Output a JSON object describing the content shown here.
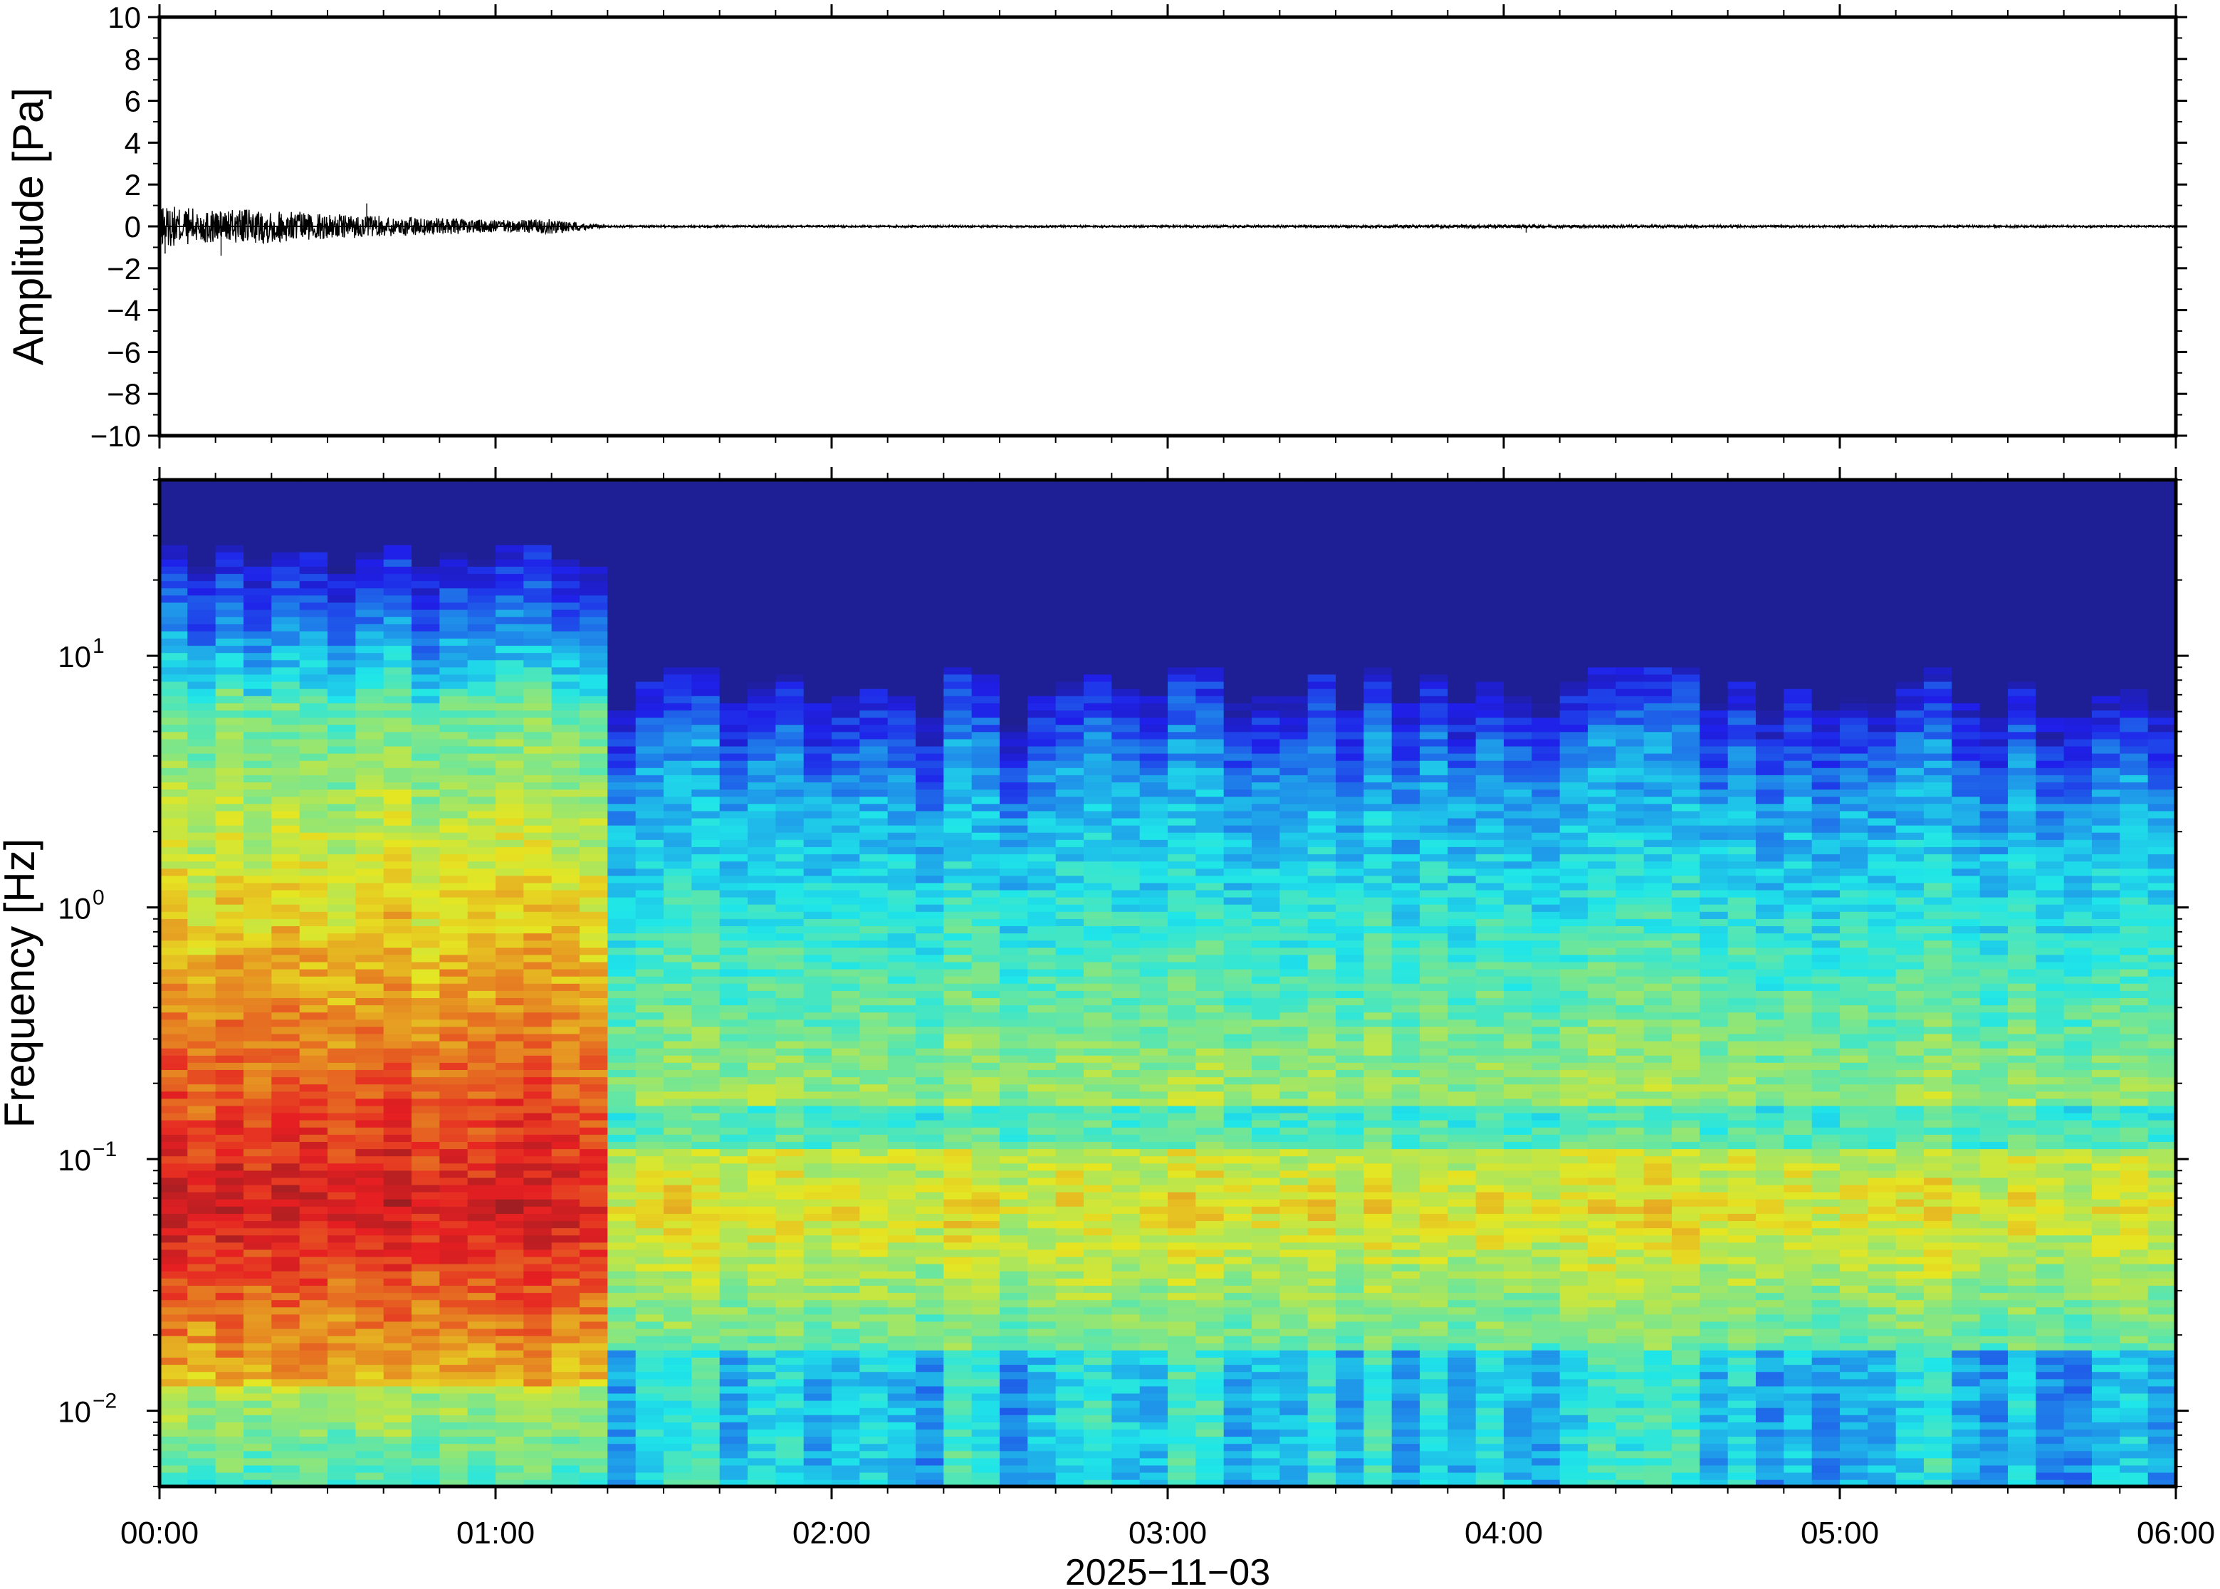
{
  "chart_data": [
    {
      "type": "line",
      "title": "",
      "ylabel": "Amplitude [Pa]",
      "xlabel": "",
      "ylim": [
        -10,
        10
      ],
      "yticks": [
        10,
        8,
        6,
        4,
        2,
        0,
        -2,
        -4,
        -6,
        -8,
        -10
      ],
      "ytick_labels": [
        "10",
        "8",
        "6",
        "4",
        "2",
        "0",
        "−2",
        "−4",
        "−6",
        "−8",
        "−10"
      ],
      "xlim": [
        "00:00",
        "06:00"
      ],
      "grid": false,
      "series": [
        {
          "envelope": {
            "time": [
              "00:00",
              "00:10",
              "00:20",
              "00:30",
              "00:40",
              "00:50",
              "01:00",
              "01:10",
              "01:15",
              "01:20",
              "02:00",
              "03:00",
              "04:00",
              "05:00",
              "06:00"
            ],
            "amplitude_pa": [
              1.0,
              0.8,
              0.8,
              0.6,
              0.5,
              0.4,
              0.3,
              0.35,
              0.2,
              0.05,
              0.05,
              0.05,
              0.08,
              0.05,
              0.05
            ]
          },
          "peaks": [
            {
              "time": "00:01",
              "value": -1.3
            },
            {
              "time": "00:11",
              "value": -1.4
            },
            {
              "time": "00:37",
              "value": 1.1
            },
            {
              "time": "04:04",
              "value": -0.3
            }
          ]
        }
      ]
    },
    {
      "type": "heatmap",
      "title": "",
      "ylabel": "Frequency [Hz]",
      "xlabel": "2025−11−03",
      "y_scale": "log",
      "ylim": [
        0.005,
        50
      ],
      "yticks": [
        0.01,
        0.1,
        1,
        10
      ],
      "ytick_labels": [
        {
          "base": "10",
          "exp": "−2"
        },
        {
          "base": "10",
          "exp": "−1"
        },
        {
          "base": "10",
          "exp": "0"
        },
        {
          "base": "10",
          "exp": "1"
        }
      ],
      "xlim": [
        "00:00",
        "06:00"
      ],
      "xtick_labels": [
        "00:00",
        "01:00",
        "02:00",
        "03:00",
        "04:00",
        "05:00",
        "06:00"
      ],
      "colormap": "jet",
      "colors": {
        "low": "#0b0473",
        "blue": "#1a3cf0",
        "cyan": "#40c8f8",
        "green": "#7fe8b8",
        "yellow": "#f0e878",
        "orange": "#f8a050",
        "red": "#e85850"
      },
      "segments": [
        {
          "from": "00:00",
          "to": "01:22",
          "description_level": "high energy below 0.1 Hz, energy up to ~30 Hz"
        },
        {
          "from": "01:22",
          "to": "06:00",
          "description_level": "lower energy, upper cutoff near 5-10 Hz"
        }
      ]
    }
  ]
}
